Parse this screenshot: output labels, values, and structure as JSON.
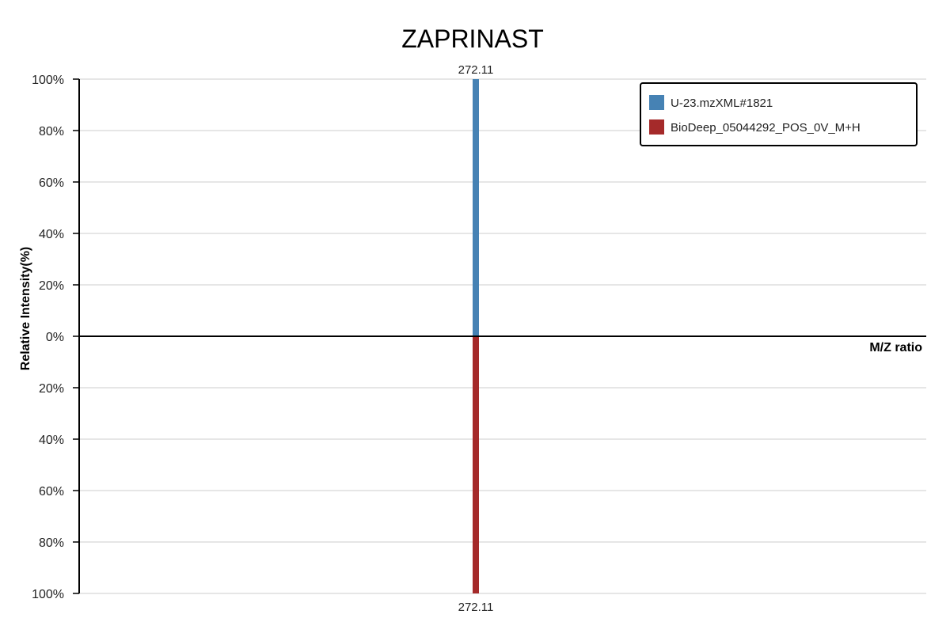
{
  "chart_data": {
    "type": "bar",
    "title": "ZAPRINAST",
    "xlabel": "M/Z ratio",
    "ylabel": "Relative Intensity(%)",
    "ylim": [
      -100,
      100
    ],
    "yticks": [
      100,
      80,
      60,
      40,
      20,
      0,
      -20,
      -40,
      -60,
      -80,
      -100
    ],
    "ytick_labels": [
      "100%",
      "80%",
      "60%",
      "40%",
      "20%",
      "0%",
      "20%",
      "40%",
      "60%",
      "80%",
      "100%"
    ],
    "grid": true,
    "legend_position": "top-right",
    "series": [
      {
        "name": "U-23.mzXML#1821",
        "color": "#4682b4",
        "direction": "up",
        "peaks": [
          {
            "mz": 272.11,
            "intensity": 100,
            "label": "272.11"
          }
        ]
      },
      {
        "name": "BioDeep_05044292_POS_0V_M+H",
        "color": "#a52a2a",
        "direction": "down",
        "peaks": [
          {
            "mz": 272.11,
            "intensity": 100,
            "label": "272.11"
          }
        ]
      }
    ]
  }
}
